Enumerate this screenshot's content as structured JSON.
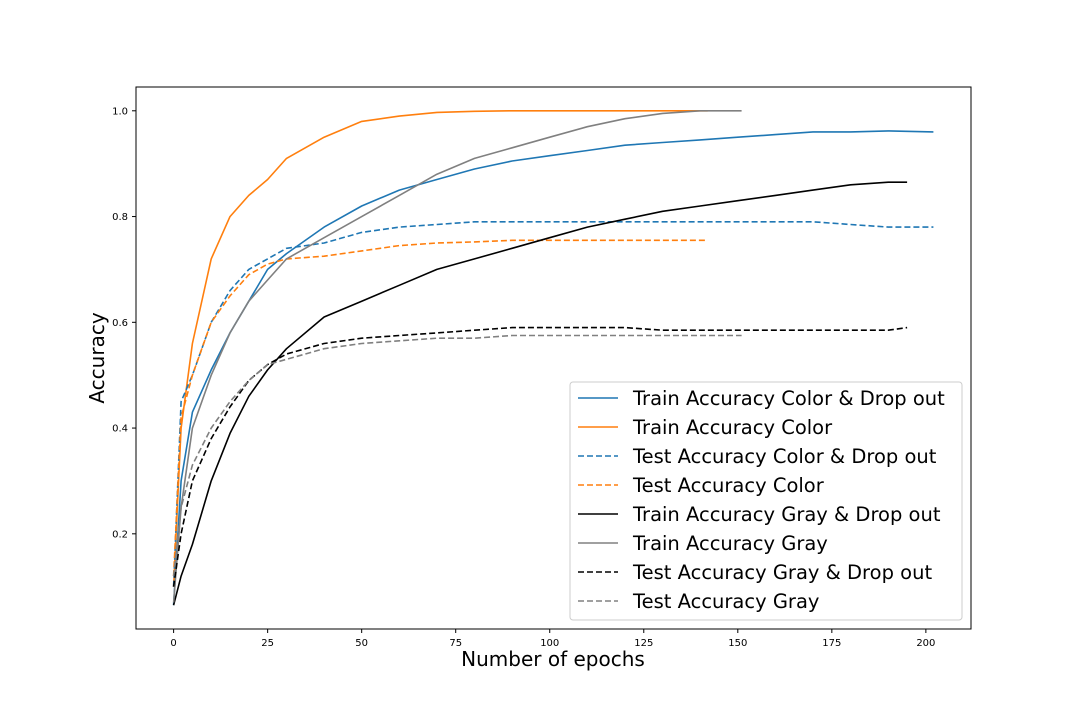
{
  "chart_data": {
    "type": "line",
    "title": "",
    "xlabel": "Number of epochs",
    "ylabel": "Accuracy",
    "xlim": [
      -10,
      212
    ],
    "ylim": [
      0.02,
      1.045
    ],
    "x_ticks": [
      0,
      25,
      50,
      75,
      100,
      125,
      150,
      175,
      200
    ],
    "y_ticks": [
      0.2,
      0.4,
      0.6,
      0.8,
      1.0
    ],
    "x_tick_labels": [
      "0",
      "25",
      "50",
      "75",
      "100",
      "125",
      "150",
      "175",
      "200"
    ],
    "y_tick_labels": [
      "0.2",
      "0.4",
      "0.6",
      "0.8",
      "1.0"
    ],
    "grid": false,
    "legend_position": "lower-right",
    "series": [
      {
        "name": "Train Accuracy Color & Drop out",
        "color": "#1f77b4",
        "style": "solid",
        "x": [
          0,
          2,
          5,
          10,
          15,
          20,
          25,
          30,
          40,
          50,
          60,
          70,
          80,
          90,
          100,
          110,
          120,
          130,
          140,
          150,
          160,
          170,
          180,
          190,
          202
        ],
        "y": [
          0.065,
          0.3,
          0.43,
          0.51,
          0.58,
          0.64,
          0.7,
          0.73,
          0.78,
          0.82,
          0.85,
          0.87,
          0.89,
          0.905,
          0.915,
          0.925,
          0.935,
          0.94,
          0.945,
          0.95,
          0.955,
          0.96,
          0.96,
          0.962,
          0.96
        ]
      },
      {
        "name": "Train Accuracy Color",
        "color": "#ff7f0e",
        "style": "solid",
        "x": [
          0,
          2,
          5,
          10,
          15,
          20,
          25,
          30,
          40,
          50,
          60,
          70,
          80,
          90,
          100,
          110,
          120,
          130,
          142
        ],
        "y": [
          0.1,
          0.4,
          0.56,
          0.72,
          0.8,
          0.84,
          0.87,
          0.91,
          0.95,
          0.98,
          0.99,
          0.997,
          0.999,
          1.0,
          1.0,
          1.0,
          1.0,
          1.0,
          1.0
        ]
      },
      {
        "name": "Test Accuracy Color & Drop out",
        "color": "#1f77b4",
        "style": "dashed",
        "x": [
          0,
          2,
          5,
          10,
          15,
          20,
          25,
          30,
          40,
          50,
          60,
          70,
          80,
          90,
          100,
          110,
          120,
          130,
          140,
          150,
          160,
          170,
          180,
          190,
          202
        ],
        "y": [
          0.1,
          0.45,
          0.5,
          0.6,
          0.66,
          0.7,
          0.72,
          0.74,
          0.75,
          0.77,
          0.78,
          0.785,
          0.79,
          0.79,
          0.79,
          0.79,
          0.79,
          0.79,
          0.79,
          0.79,
          0.79,
          0.79,
          0.785,
          0.78,
          0.78
        ]
      },
      {
        "name": "Test Accuracy Color",
        "color": "#ff7f0e",
        "style": "dashed",
        "x": [
          0,
          2,
          5,
          10,
          15,
          20,
          25,
          30,
          40,
          50,
          60,
          70,
          80,
          90,
          100,
          110,
          120,
          130,
          142
        ],
        "y": [
          0.12,
          0.42,
          0.5,
          0.6,
          0.65,
          0.69,
          0.71,
          0.72,
          0.725,
          0.735,
          0.745,
          0.75,
          0.752,
          0.755,
          0.755,
          0.755,
          0.755,
          0.755,
          0.755
        ]
      },
      {
        "name": "Train Accuracy Gray & Drop out",
        "color": "#000000",
        "style": "solid",
        "x": [
          0,
          2,
          5,
          10,
          15,
          20,
          25,
          30,
          40,
          50,
          60,
          70,
          80,
          90,
          100,
          110,
          120,
          130,
          140,
          150,
          160,
          170,
          180,
          190,
          195
        ],
        "y": [
          0.065,
          0.12,
          0.18,
          0.3,
          0.39,
          0.46,
          0.51,
          0.55,
          0.61,
          0.64,
          0.67,
          0.7,
          0.72,
          0.74,
          0.76,
          0.78,
          0.795,
          0.81,
          0.82,
          0.83,
          0.84,
          0.85,
          0.86,
          0.865,
          0.865
        ]
      },
      {
        "name": "Train Accuracy Gray",
        "color": "#808080",
        "style": "solid",
        "x": [
          0,
          2,
          5,
          10,
          15,
          20,
          25,
          30,
          40,
          50,
          60,
          70,
          80,
          90,
          100,
          110,
          120,
          130,
          140,
          151
        ],
        "y": [
          0.07,
          0.25,
          0.4,
          0.5,
          0.58,
          0.64,
          0.68,
          0.72,
          0.76,
          0.8,
          0.84,
          0.88,
          0.91,
          0.93,
          0.95,
          0.97,
          0.985,
          0.995,
          1.0,
          1.0
        ]
      },
      {
        "name": "Test Accuracy Gray & Drop out",
        "color": "#000000",
        "style": "dashed",
        "x": [
          0,
          2,
          5,
          10,
          15,
          20,
          25,
          30,
          40,
          50,
          60,
          70,
          80,
          90,
          100,
          110,
          120,
          130,
          140,
          150,
          160,
          170,
          180,
          190,
          195
        ],
        "y": [
          0.1,
          0.2,
          0.3,
          0.38,
          0.44,
          0.49,
          0.52,
          0.54,
          0.56,
          0.57,
          0.575,
          0.58,
          0.585,
          0.59,
          0.59,
          0.59,
          0.59,
          0.585,
          0.585,
          0.585,
          0.585,
          0.585,
          0.585,
          0.585,
          0.59
        ]
      },
      {
        "name": "Test Accuracy Gray",
        "color": "#808080",
        "style": "dashed",
        "x": [
          0,
          2,
          5,
          10,
          15,
          20,
          25,
          30,
          40,
          50,
          60,
          70,
          80,
          90,
          100,
          110,
          120,
          130,
          140,
          151
        ],
        "y": [
          0.12,
          0.25,
          0.33,
          0.4,
          0.45,
          0.49,
          0.52,
          0.53,
          0.55,
          0.56,
          0.565,
          0.57,
          0.57,
          0.575,
          0.575,
          0.575,
          0.575,
          0.575,
          0.575,
          0.575
        ]
      }
    ]
  }
}
